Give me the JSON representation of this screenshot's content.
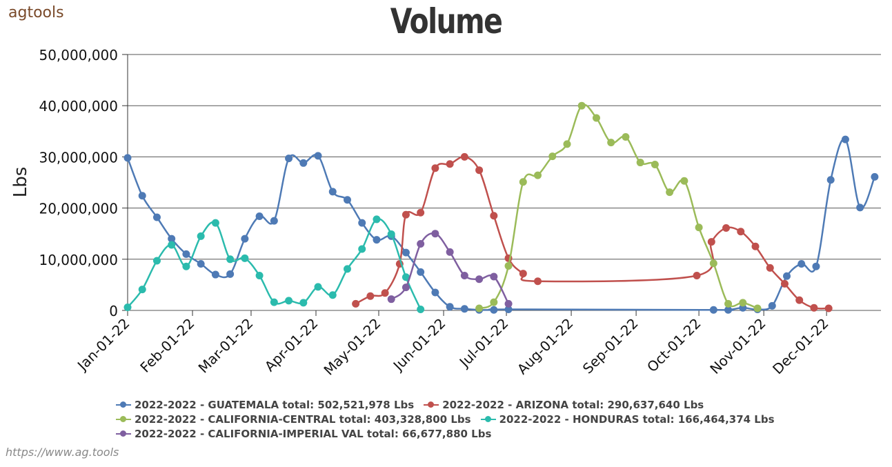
{
  "header": {
    "logo_text": "agtools",
    "url_text": "https://www.ag.tools"
  },
  "chart_data": {
    "type": "line",
    "title": "Volume",
    "xlabel": "",
    "ylabel": "Lbs",
    "ylim": [
      0,
      50000000
    ],
    "yticks": [
      0,
      10000000,
      20000000,
      30000000,
      40000000,
      50000000
    ],
    "ytick_labels": [
      "0",
      "10,000,000",
      "20,000,000",
      "30,000,000",
      "40,000,000",
      "50,000,000"
    ],
    "xlim": [
      "2022-01-01",
      "2022-12-27"
    ],
    "xticks": [
      "2022-01-01",
      "2022-02-01",
      "2022-03-01",
      "2022-04-01",
      "2022-05-01",
      "2022-06-01",
      "2022-07-01",
      "2022-08-01",
      "2022-09-01",
      "2022-10-01",
      "2022-11-01",
      "2022-12-01"
    ],
    "xtick_labels": [
      "Jan-01-22",
      "Feb-01-22",
      "Mar-01-22",
      "Apr-01-22",
      "May-01-22",
      "Jun-01-22",
      "Jul-01-22",
      "Aug-01-22",
      "Sep-01-22",
      "Oct-01-22",
      "Nov-01-22",
      "Dec-01-22"
    ],
    "grid": true,
    "legend_position": "bottom",
    "series": [
      {
        "name": "2022-2022 - GUATEMALA total: 502,521,978 Lbs",
        "color": "#4e7ab5",
        "points": [
          [
            "2022-01-01",
            29800000
          ],
          [
            "2022-01-08",
            22400000
          ],
          [
            "2022-01-15",
            18200000
          ],
          [
            "2022-01-22",
            14000000
          ],
          [
            "2022-01-29",
            11000000
          ],
          [
            "2022-02-05",
            9100000
          ],
          [
            "2022-02-12",
            7000000
          ],
          [
            "2022-02-19",
            7100000
          ],
          [
            "2022-02-26",
            14000000
          ],
          [
            "2022-03-05",
            18400000
          ],
          [
            "2022-03-12",
            17500000
          ],
          [
            "2022-03-19",
            29700000
          ],
          [
            "2022-03-26",
            28800000
          ],
          [
            "2022-04-02",
            30200000
          ],
          [
            "2022-04-09",
            23200000
          ],
          [
            "2022-04-16",
            21600000
          ],
          [
            "2022-04-23",
            17100000
          ],
          [
            "2022-04-30",
            13800000
          ],
          [
            "2022-05-07",
            14500000
          ],
          [
            "2022-05-14",
            11300000
          ],
          [
            "2022-05-21",
            7500000
          ],
          [
            "2022-05-28",
            3500000
          ],
          [
            "2022-06-04",
            700000
          ],
          [
            "2022-06-11",
            300000
          ],
          [
            "2022-06-18",
            100000
          ],
          [
            "2022-06-25",
            100000
          ],
          [
            "2022-07-02",
            200000
          ],
          [
            "2022-10-08",
            100000
          ],
          [
            "2022-10-15",
            100000
          ],
          [
            "2022-10-22",
            500000
          ],
          [
            "2022-10-29",
            200000
          ],
          [
            "2022-11-05",
            900000
          ],
          [
            "2022-11-12",
            6700000
          ],
          [
            "2022-11-19",
            9100000
          ],
          [
            "2022-11-26",
            8600000
          ],
          [
            "2022-12-03",
            25500000
          ],
          [
            "2022-12-10",
            33400000
          ],
          [
            "2022-12-17",
            20100000
          ],
          [
            "2022-12-24",
            26100000
          ]
        ]
      },
      {
        "name": "2022-2022 - ARIZONA total: 290,637,640 Lbs",
        "color": "#c0504d",
        "points": [
          [
            "2022-04-20",
            1300000
          ],
          [
            "2022-04-27",
            2800000
          ],
          [
            "2022-05-04",
            3400000
          ],
          [
            "2022-05-11",
            9100000
          ],
          [
            "2022-05-14",
            18700000
          ],
          [
            "2022-05-21",
            19100000
          ],
          [
            "2022-05-28",
            27800000
          ],
          [
            "2022-06-04",
            28600000
          ],
          [
            "2022-06-11",
            30000000
          ],
          [
            "2022-06-18",
            27400000
          ],
          [
            "2022-06-25",
            18500000
          ],
          [
            "2022-07-02",
            10200000
          ],
          [
            "2022-07-09",
            7200000
          ],
          [
            "2022-07-16",
            5700000
          ],
          [
            "2022-09-30",
            6800000
          ],
          [
            "2022-10-07",
            13400000
          ],
          [
            "2022-10-14",
            16100000
          ],
          [
            "2022-10-21",
            15400000
          ],
          [
            "2022-10-28",
            12500000
          ],
          [
            "2022-11-04",
            8300000
          ],
          [
            "2022-11-11",
            5200000
          ],
          [
            "2022-11-18",
            2000000
          ],
          [
            "2022-11-25",
            500000
          ],
          [
            "2022-12-02",
            400000
          ]
        ]
      },
      {
        "name": "2022-2022 - CALIFORNIA-CENTRAL total: 403,328,800 Lbs",
        "color": "#9bbb59",
        "points": [
          [
            "2022-06-18",
            400000
          ],
          [
            "2022-06-25",
            1600000
          ],
          [
            "2022-07-02",
            8700000
          ],
          [
            "2022-07-09",
            25100000
          ],
          [
            "2022-07-16",
            26400000
          ],
          [
            "2022-07-23",
            30100000
          ],
          [
            "2022-07-30",
            32500000
          ],
          [
            "2022-08-06",
            40000000
          ],
          [
            "2022-08-13",
            37600000
          ],
          [
            "2022-08-20",
            32800000
          ],
          [
            "2022-08-27",
            33900000
          ],
          [
            "2022-09-03",
            28900000
          ],
          [
            "2022-09-10",
            28500000
          ],
          [
            "2022-09-17",
            23100000
          ],
          [
            "2022-09-24",
            25300000
          ],
          [
            "2022-10-01",
            16200000
          ],
          [
            "2022-10-08",
            9200000
          ],
          [
            "2022-10-15",
            1300000
          ],
          [
            "2022-10-22",
            1500000
          ],
          [
            "2022-10-29",
            400000
          ]
        ]
      },
      {
        "name": "2022-2022 - HONDURAS total: 166,464,374 Lbs",
        "color": "#2bbbad",
        "points": [
          [
            "2022-01-01",
            600000
          ],
          [
            "2022-01-08",
            4100000
          ],
          [
            "2022-01-15",
            9700000
          ],
          [
            "2022-01-22",
            12800000
          ],
          [
            "2022-01-29",
            8600000
          ],
          [
            "2022-02-05",
            14500000
          ],
          [
            "2022-02-12",
            17100000
          ],
          [
            "2022-02-19",
            10000000
          ],
          [
            "2022-02-26",
            10200000
          ],
          [
            "2022-03-05",
            6800000
          ],
          [
            "2022-03-12",
            1600000
          ],
          [
            "2022-03-19",
            1900000
          ],
          [
            "2022-03-26",
            1500000
          ],
          [
            "2022-04-02",
            4600000
          ],
          [
            "2022-04-09",
            3000000
          ],
          [
            "2022-04-16",
            8100000
          ],
          [
            "2022-04-23",
            12000000
          ],
          [
            "2022-04-30",
            17800000
          ],
          [
            "2022-05-07",
            14900000
          ],
          [
            "2022-05-14",
            6500000
          ],
          [
            "2022-05-21",
            200000
          ]
        ]
      },
      {
        "name": "2022-2022 - CALIFORNIA-IMPERIAL VAL total: 66,677,880 Lbs",
        "color": "#7f5fa0",
        "points": [
          [
            "2022-05-07",
            2200000
          ],
          [
            "2022-05-14",
            4500000
          ],
          [
            "2022-05-21",
            13000000
          ],
          [
            "2022-05-28",
            15000000
          ],
          [
            "2022-06-04",
            11400000
          ],
          [
            "2022-06-11",
            6800000
          ],
          [
            "2022-06-18",
            6100000
          ],
          [
            "2022-06-25",
            6600000
          ],
          [
            "2022-07-02",
            1300000
          ]
        ]
      }
    ]
  }
}
